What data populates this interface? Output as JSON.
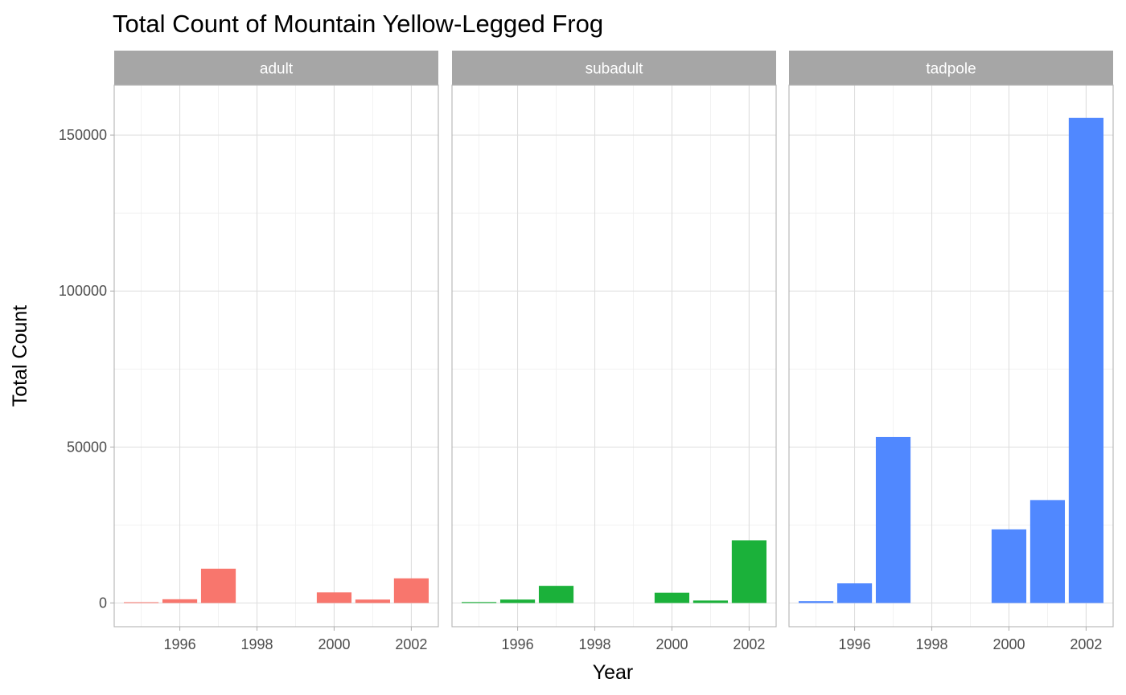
{
  "chart_data": {
    "type": "bar",
    "title": "Total Count of Mountain Yellow-Legged Frog",
    "xlabel": "Year",
    "ylabel": "Total Count",
    "x_ticks": [
      1996,
      1998,
      2000,
      2002
    ],
    "y_ticks": [
      0,
      50000,
      100000,
      150000
    ],
    "xlim": [
      1994.3,
      2002.7
    ],
    "ylim": [
      -7600,
      166000
    ],
    "grid": true,
    "facets": [
      {
        "name": "adult",
        "color": "#F8766D",
        "x": [
          1995,
          1996,
          1997,
          1998,
          1999,
          2000,
          2001,
          2002
        ],
        "values": [
          250,
          1200,
          11000,
          0,
          0,
          3400,
          1100,
          7900
        ]
      },
      {
        "name": "subadult",
        "color": "#1BB13A",
        "x": [
          1995,
          1996,
          1997,
          1998,
          1999,
          2000,
          2001,
          2002
        ],
        "values": [
          300,
          1100,
          5500,
          0,
          0,
          3300,
          800,
          20100
        ]
      },
      {
        "name": "tadpole",
        "color": "#5088FF",
        "x": [
          1995,
          1996,
          1997,
          1998,
          1999,
          2000,
          2001,
          2002
        ],
        "values": [
          600,
          6300,
          53200,
          0,
          0,
          23600,
          33000,
          155500
        ]
      }
    ]
  }
}
